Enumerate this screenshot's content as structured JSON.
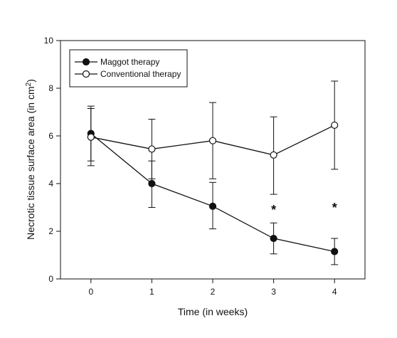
{
  "chart_data": {
    "type": "line",
    "xlabel": "Time (in weeks)",
    "ylabel": "Necrotic tissue surface area (in cm",
    "ylabel_superscript": "2",
    "ylabel_suffix": ")",
    "x": [
      0,
      1,
      2,
      3,
      4
    ],
    "x_ticks": [
      "0",
      "1",
      "2",
      "3",
      "4"
    ],
    "y_ticks": [
      "0",
      "2",
      "4",
      "6",
      "8",
      "10"
    ],
    "xlim": [
      -0.5,
      4.5
    ],
    "ylim": [
      0,
      10
    ],
    "grid": false,
    "legend_position": "top-left",
    "series": [
      {
        "name": "Maggot therapy",
        "marker": "filled-circle",
        "values": [
          6.1,
          4.0,
          3.05,
          1.7,
          1.15
        ],
        "error_upper": [
          7.25,
          4.95,
          4.05,
          2.35,
          1.7
        ],
        "error_lower": [
          4.95,
          3.0,
          2.1,
          1.05,
          0.6
        ]
      },
      {
        "name": "Conventional therapy",
        "marker": "open-circle",
        "values": [
          5.95,
          5.45,
          5.8,
          5.2,
          6.45
        ],
        "error_upper": [
          7.15,
          6.7,
          7.4,
          6.8,
          8.3
        ],
        "error_lower": [
          4.75,
          4.2,
          4.2,
          3.55,
          4.6
        ]
      }
    ],
    "annotations": [
      {
        "text": "*",
        "x": 3,
        "y": 2.95
      },
      {
        "text": "*",
        "x": 4,
        "y": 3.05
      }
    ]
  }
}
